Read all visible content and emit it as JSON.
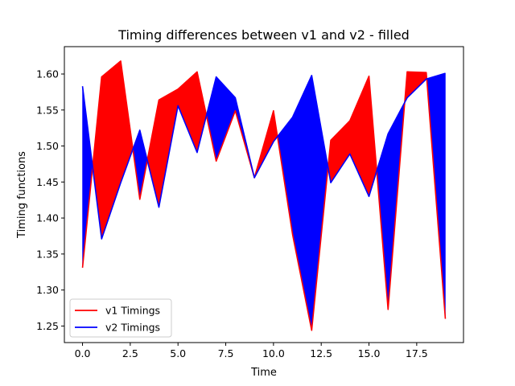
{
  "chart_data": {
    "type": "area",
    "title": "Timing differences between v1 and v2 - filled",
    "xlabel": "Time",
    "ylabel": "Timing functions",
    "xlim": [
      -0.95,
      19.95
    ],
    "ylim": [
      1.227,
      1.638
    ],
    "xticks": [
      0,
      2.5,
      5,
      7.5,
      10,
      12.5,
      15,
      17.5
    ],
    "xtick_labels": [
      "0.0",
      "2.5",
      "5.0",
      "7.5",
      "10.0",
      "12.5",
      "15.0",
      "17.5"
    ],
    "yticks": [
      1.25,
      1.3,
      1.35,
      1.4,
      1.45,
      1.5,
      1.55,
      1.6
    ],
    "ytick_labels": [
      "1.25",
      "1.30",
      "1.35",
      "1.40",
      "1.45",
      "1.50",
      "1.55",
      "1.60"
    ],
    "grid": false,
    "legend_position": "lower-left",
    "x": [
      0,
      1,
      2,
      3,
      4,
      5,
      6,
      7,
      8,
      9,
      10,
      11,
      12,
      13,
      14,
      15,
      16,
      17,
      18,
      19
    ],
    "series": [
      {
        "name": "v1 Timings",
        "color": "#ff0000",
        "values": [
          1.331,
          1.596,
          1.618,
          1.426,
          1.564,
          1.579,
          1.603,
          1.479,
          1.549,
          1.456,
          1.549,
          1.377,
          1.244,
          1.508,
          1.535,
          1.597,
          1.273,
          1.603,
          1.602,
          1.26
        ]
      },
      {
        "name": "v2 Timings",
        "color": "#0000ff",
        "values": [
          1.583,
          1.371,
          1.449,
          1.522,
          1.415,
          1.556,
          1.491,
          1.596,
          1.567,
          1.456,
          1.506,
          1.54,
          1.598,
          1.449,
          1.489,
          1.43,
          1.517,
          1.567,
          1.593,
          1.601
        ]
      }
    ]
  }
}
